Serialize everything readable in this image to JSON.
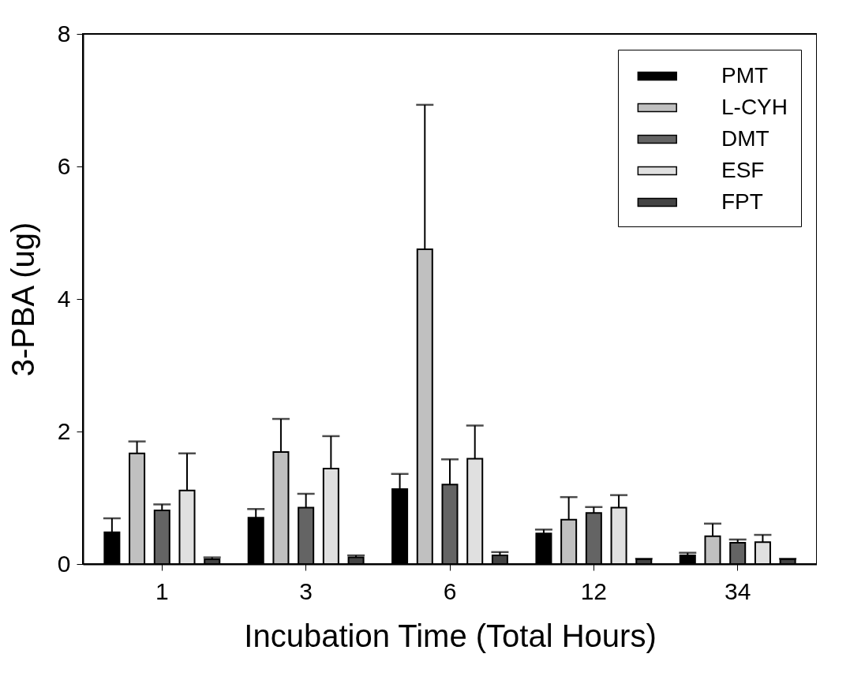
{
  "chart_data": {
    "type": "bar",
    "xlabel": "Incubation Time (Total Hours)",
    "ylabel": "3-PBA (ug)",
    "categories": [
      "1",
      "3",
      "6",
      "12",
      "34"
    ],
    "ylim": [
      0,
      8
    ],
    "yticks": [
      0,
      2,
      4,
      6,
      8
    ],
    "legend": "top right",
    "series": [
      {
        "name": "PMT",
        "color": "#000000",
        "values": [
          0.48,
          0.7,
          1.13,
          0.46,
          0.13
        ],
        "errors": [
          [
            0.48,
            0.69
          ],
          [
            0.7,
            0.83
          ],
          [
            1.13,
            1.36
          ],
          [
            0.46,
            0.52
          ],
          [
            0.13,
            0.17
          ]
        ]
      },
      {
        "name": "L-CYH",
        "color": "#c0c0c0",
        "values": [
          1.67,
          1.69,
          4.75,
          0.67,
          0.42
        ],
        "errors": [
          [
            1.67,
            1.85
          ],
          [
            1.69,
            2.19
          ],
          [
            4.75,
            6.93
          ],
          [
            0.67,
            1.01
          ],
          [
            0.42,
            0.61
          ]
        ]
      },
      {
        "name": "DMT",
        "color": "#646464",
        "values": [
          0.81,
          0.85,
          1.2,
          0.77,
          0.32
        ],
        "errors": [
          [
            0.81,
            0.9
          ],
          [
            0.85,
            1.06
          ],
          [
            1.2,
            1.58
          ],
          [
            0.77,
            0.86
          ],
          [
            0.32,
            0.37
          ]
        ]
      },
      {
        "name": "ESF",
        "color": "#e0e0e0",
        "values": [
          1.11,
          1.44,
          1.59,
          0.85,
          0.33
        ],
        "errors": [
          [
            1.11,
            1.67
          ],
          [
            1.44,
            1.93
          ],
          [
            1.59,
            2.09
          ],
          [
            0.85,
            1.04
          ],
          [
            0.33,
            0.44
          ]
        ]
      },
      {
        "name": "FPT",
        "color": "#444444",
        "values": [
          0.07,
          0.1,
          0.13,
          0.07,
          0.07
        ],
        "errors": [
          [
            0.07,
            0.1
          ],
          [
            0.1,
            0.13
          ],
          [
            0.13,
            0.18
          ],
          [
            0.07,
            0.08
          ],
          [
            0.07,
            0.08
          ]
        ]
      }
    ]
  }
}
